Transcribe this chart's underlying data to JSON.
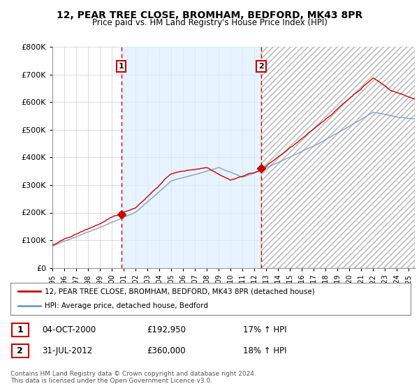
{
  "title": "12, PEAR TREE CLOSE, BROMHAM, BEDFORD, MK43 8PR",
  "subtitle": "Price paid vs. HM Land Registry's House Price Index (HPI)",
  "sale1_date": 2000.79,
  "sale1_price": 192950,
  "sale2_date": 2012.58,
  "sale2_price": 360000,
  "legend_label1": "12, PEAR TREE CLOSE, BROMHAM, BEDFORD, MK43 8PR (detached house)",
  "legend_label2": "HPI: Average price, detached house, Bedford",
  "table_row1": [
    "1",
    "04-OCT-2000",
    "£192,950",
    "17% ↑ HPI"
  ],
  "table_row2": [
    "2",
    "31-JUL-2012",
    "£360,000",
    "18% ↑ HPI"
  ],
  "footer": "Contains HM Land Registry data © Crown copyright and database right 2024.\nThis data is licensed under the Open Government Licence v3.0.",
  "red_color": "#cc0000",
  "blue_color": "#7799bb",
  "shade_color": "#ddeeff",
  "ylim": [
    0,
    800000
  ],
  "xlim_start": 1995.0,
  "xlim_end": 2025.5
}
